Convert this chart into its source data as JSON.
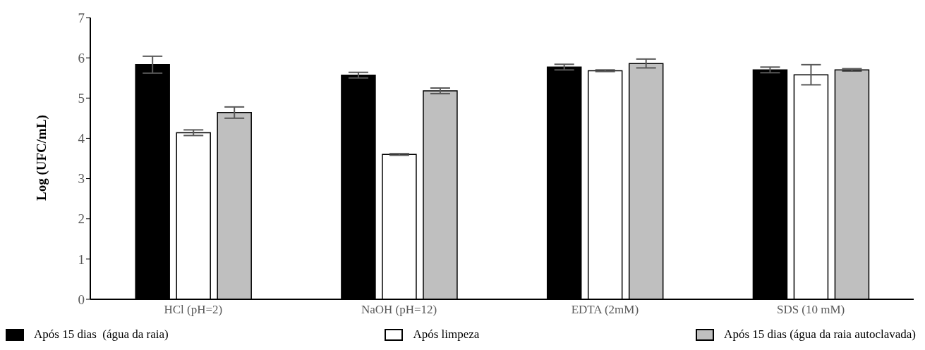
{
  "chart_data": {
    "type": "bar",
    "ylabel": "Log (UFC/mL)",
    "categories": [
      "HCl (pH=2)",
      "NaOH (pH=12)",
      "EDTA (2mM)",
      "SDS (10 mM)"
    ],
    "series": [
      {
        "name": "Após 15 dias  (água da raia)",
        "color": "#000000",
        "values": [
          5.83,
          5.57,
          5.77,
          5.7
        ],
        "errors": [
          0.21,
          0.07,
          0.07,
          0.07
        ]
      },
      {
        "name": "Após limpeza",
        "color": "#ffffff",
        "values": [
          4.14,
          3.6,
          5.68,
          5.58
        ],
        "errors": [
          0.07,
          0.02,
          0.02,
          0.25
        ]
      },
      {
        "name": "Após 15 dias (água da raia autoclavada)",
        "color": "#bfbfbf",
        "values": [
          4.64,
          5.18,
          5.86,
          5.7
        ],
        "errors": [
          0.14,
          0.07,
          0.11,
          0.03
        ]
      }
    ],
    "ylim": [
      0,
      7
    ],
    "yticks": [
      0,
      1,
      2,
      3,
      4,
      5,
      6,
      7
    ],
    "grid": false,
    "legend": "bottom"
  }
}
